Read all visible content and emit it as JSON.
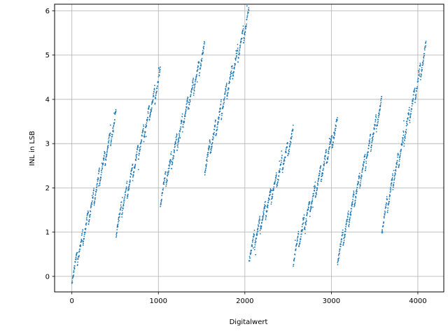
{
  "chart_data": {
    "type": "scatter",
    "title": "",
    "xlabel": "Digitalwert",
    "ylabel": "INL in LSB",
    "xlim": [
      -200,
      4300
    ],
    "ylim": [
      -0.35,
      6.15
    ],
    "grid": true,
    "marker_color": "#1f77b4",
    "xticks": [
      0,
      1000,
      2000,
      3000,
      4000
    ],
    "yticks": [
      0,
      1,
      2,
      3,
      4,
      5,
      6
    ],
    "xtick_labels": [
      "0",
      "1000",
      "2000",
      "3000",
      "4000"
    ],
    "ytick_labels": [
      "0",
      "1",
      "2",
      "3",
      "4",
      "5",
      "6"
    ],
    "series": [
      {
        "name": "",
        "segments": [
          {
            "x": [
              0,
              511
            ],
            "y": [
              0.0,
              3.6
            ]
          },
          {
            "x": [
              512,
              1023
            ],
            "y": [
              1.1,
              4.55
            ]
          },
          {
            "x": [
              1024,
              1535
            ],
            "y": [
              1.8,
              5.15
            ]
          },
          {
            "x": [
              1536,
              2047
            ],
            "y": [
              2.5,
              5.9
            ]
          },
          {
            "x": [
              2048,
              2559
            ],
            "y": [
              0.5,
              3.2
            ]
          },
          {
            "x": [
              2560,
              3071
            ],
            "y": [
              0.45,
              3.45
            ]
          },
          {
            "x": [
              3072,
              3583
            ],
            "y": [
              0.45,
              3.9
            ]
          },
          {
            "x": [
              3584,
              4095
            ],
            "y": [
              1.15,
              5.15
            ]
          }
        ]
      }
    ]
  }
}
